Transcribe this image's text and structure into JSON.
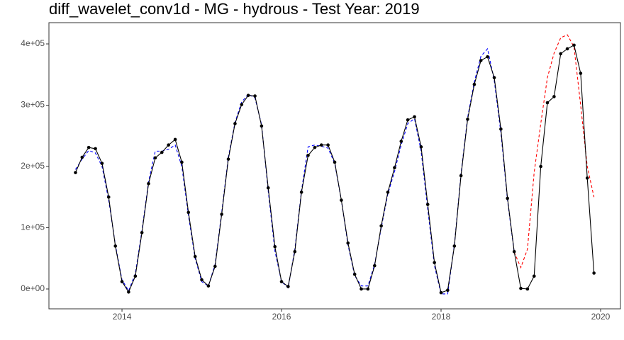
{
  "chart_data": {
    "type": "line",
    "title": "diff_wavelet_conv1d - MG - hydrous - Test Year: 2019",
    "x": [
      2013.417,
      2013.5,
      2013.583,
      2013.667,
      2013.75,
      2013.833,
      2013.917,
      2014.0,
      2014.083,
      2014.167,
      2014.25,
      2014.333,
      2014.417,
      2014.5,
      2014.583,
      2014.667,
      2014.75,
      2014.833,
      2014.917,
      2015.0,
      2015.083,
      2015.167,
      2015.25,
      2015.333,
      2015.417,
      2015.5,
      2015.583,
      2015.667,
      2015.75,
      2015.833,
      2015.917,
      2016.0,
      2016.083,
      2016.167,
      2016.25,
      2016.333,
      2016.417,
      2016.5,
      2016.583,
      2016.667,
      2016.75,
      2016.833,
      2016.917,
      2017.0,
      2017.083,
      2017.167,
      2017.25,
      2017.333,
      2017.417,
      2017.5,
      2017.583,
      2017.667,
      2017.75,
      2017.833,
      2017.917,
      2018.0,
      2018.083,
      2018.167,
      2018.25,
      2018.333,
      2018.417,
      2018.5,
      2018.583,
      2018.667,
      2018.75,
      2018.833,
      2018.917,
      2019.0,
      2019.083,
      2019.167,
      2019.25,
      2019.333,
      2019.417,
      2019.5,
      2019.583,
      2019.667,
      2019.75,
      2019.833,
      2019.917
    ],
    "series": [
      {
        "color": "#0000ff",
        "dash": true,
        "markers": false,
        "values": [
          195000,
          212000,
          226000,
          222000,
          200000,
          145000,
          72000,
          15000,
          -3000,
          25000,
          95000,
          175000,
          225000,
          225000,
          228000,
          235000,
          200000,
          120000,
          50000,
          12000,
          5000,
          40000,
          125000,
          215000,
          272000,
          305000,
          318000,
          312000,
          268000,
          160000,
          62000,
          12000,
          2000,
          65000,
          160000,
          232000,
          235000,
          233000,
          230000,
          205000,
          145000,
          72000,
          22000,
          5000,
          5000,
          40000,
          100000,
          155000,
          192000,
          235000,
          270000,
          278000,
          225000,
          130000,
          38000,
          -8000,
          -8000,
          72000,
          188000,
          280000,
          338000,
          380000,
          392000,
          340000,
          255000,
          145000,
          60000,
          null,
          null,
          null,
          null,
          null,
          null,
          null,
          null,
          null,
          null,
          null,
          null
        ]
      },
      {
        "color": "#ff0000",
        "dash": true,
        "markers": false,
        "values": [
          null,
          null,
          null,
          null,
          null,
          null,
          null,
          null,
          null,
          null,
          null,
          null,
          null,
          null,
          null,
          null,
          null,
          null,
          null,
          null,
          null,
          null,
          null,
          null,
          null,
          null,
          null,
          null,
          null,
          null,
          null,
          null,
          null,
          null,
          null,
          null,
          null,
          null,
          null,
          null,
          null,
          null,
          null,
          null,
          null,
          null,
          null,
          null,
          null,
          null,
          null,
          null,
          null,
          null,
          null,
          null,
          null,
          null,
          null,
          null,
          null,
          null,
          null,
          null,
          null,
          null,
          60000,
          35000,
          65000,
          190000,
          270000,
          345000,
          385000,
          410000,
          415000,
          395000,
          300000,
          200000,
          150000
        ]
      },
      {
        "color": "#000000",
        "dash": false,
        "markers": true,
        "values": [
          190000,
          215000,
          231000,
          229000,
          205000,
          150000,
          70000,
          12000,
          -5000,
          21000,
          92000,
          172000,
          214000,
          223000,
          235000,
          244000,
          207000,
          125000,
          53000,
          15000,
          5000,
          37000,
          122000,
          212000,
          270000,
          301000,
          316000,
          315000,
          266000,
          165000,
          69000,
          12000,
          4000,
          61000,
          158000,
          218000,
          231000,
          235000,
          235000,
          207000,
          145000,
          75000,
          24000,
          0,
          0,
          38000,
          103000,
          158000,
          198000,
          241000,
          276000,
          281000,
          232000,
          138000,
          43000,
          -6000,
          -2000,
          70000,
          185000,
          277000,
          334000,
          373000,
          379000,
          345000,
          261000,
          148000,
          61000,
          1000,
          0,
          21000,
          200000,
          304000,
          314000,
          384000,
          392000,
          398000,
          352000,
          181000,
          26000
        ]
      }
    ],
    "xlim": [
      2013.084,
      2020.249
    ],
    "xticks": [
      2014,
      2016,
      2018,
      2020
    ],
    "ylim": [
      -32400,
      434700
    ],
    "yticks": [
      {
        "value": 0,
        "label": "0e+00"
      },
      {
        "value": 100000,
        "label": "1e+05"
      },
      {
        "value": 200000,
        "label": "2e+05"
      },
      {
        "value": 300000,
        "label": "3e+05"
      },
      {
        "value": 400000,
        "label": "4e+05"
      }
    ],
    "grid": false
  }
}
